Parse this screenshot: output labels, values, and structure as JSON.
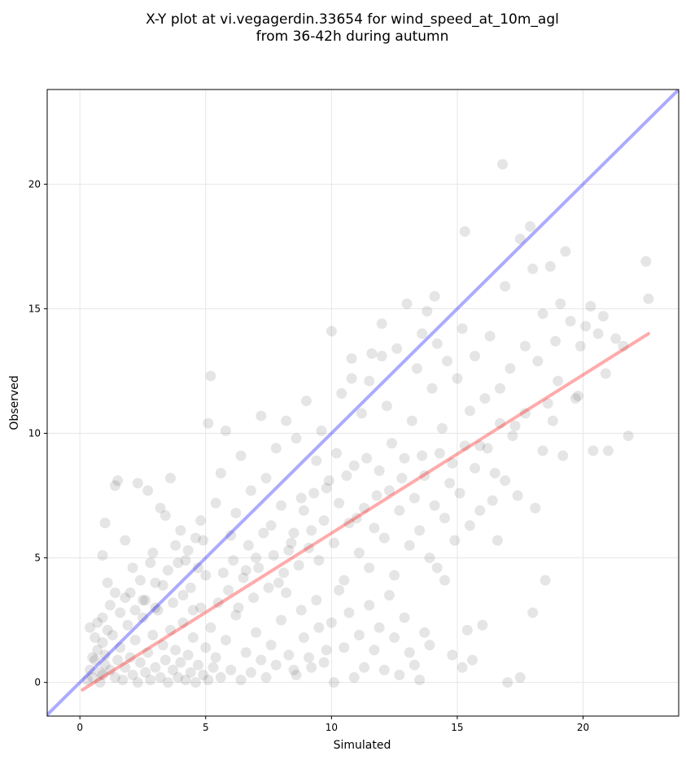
{
  "chart_data": {
    "type": "scatter",
    "title": "X-Y plot at vi.vegagerdin.33654 for wind_speed_at_10m_agl",
    "subtitle": "from 36-42h during autumn",
    "xlabel": "Simulated",
    "ylabel": "Observed",
    "xlim": [
      -1.3,
      23.8
    ],
    "ylim": [
      -1.35,
      23.8
    ],
    "xticks": [
      0,
      5,
      10,
      15,
      20
    ],
    "yticks": [
      0,
      5,
      10,
      15,
      20
    ],
    "grid": true,
    "point_color": "#000000",
    "point_opacity": 0.1,
    "identity_line": {
      "color": "#0000ff",
      "opacity": 0.33,
      "from": [
        -1.3,
        -1.3
      ],
      "to": [
        23.8,
        23.8
      ]
    },
    "fit_line": {
      "color": "#ff0000",
      "opacity": 0.33,
      "from": [
        0.1,
        -0.3
      ],
      "to": [
        22.6,
        14.0
      ]
    },
    "points": [
      [
        0.3,
        0.1
      ],
      [
        0.4,
        0.5
      ],
      [
        0.5,
        0.2
      ],
      [
        0.6,
        0.9
      ],
      [
        0.7,
        1.3
      ],
      [
        0.8,
        0.4
      ],
      [
        0.9,
        1.6
      ],
      [
        1.0,
        0.7
      ],
      [
        1.1,
        2.1
      ],
      [
        0.5,
        1.0
      ],
      [
        0.6,
        1.8
      ],
      [
        0.7,
        2.4
      ],
      [
        0.8,
        0.0
      ],
      [
        0.9,
        0.3
      ],
      [
        1.0,
        1.1
      ],
      [
        1.2,
        0.5
      ],
      [
        1.3,
        1.9
      ],
      [
        1.4,
        0.2
      ],
      [
        0.4,
        2.2
      ],
      [
        0.9,
        2.6
      ],
      [
        1.5,
        0.9
      ],
      [
        1.6,
        1.4
      ],
      [
        1.7,
        0.1
      ],
      [
        1.8,
        0.6
      ],
      [
        1.9,
        2.3
      ],
      [
        2.0,
        1.0
      ],
      [
        2.1,
        0.3
      ],
      [
        2.2,
        1.7
      ],
      [
        2.3,
        0.0
      ],
      [
        2.4,
        0.8
      ],
      [
        2.5,
        2.6
      ],
      [
        2.6,
        0.4
      ],
      [
        2.7,
        1.2
      ],
      [
        2.8,
        0.1
      ],
      [
        2.9,
        1.9
      ],
      [
        3.0,
        0.6
      ],
      [
        3.1,
        2.9
      ],
      [
        3.2,
        0.2
      ],
      [
        3.3,
        1.5
      ],
      [
        3.4,
        0.9
      ],
      [
        3.5,
        0.0
      ],
      [
        3.6,
        2.1
      ],
      [
        3.7,
        0.5
      ],
      [
        3.8,
        1.3
      ],
      [
        3.9,
        0.2
      ],
      [
        4.0,
        0.8
      ],
      [
        4.1,
        2.4
      ],
      [
        4.2,
        0.1
      ],
      [
        4.3,
        1.1
      ],
      [
        4.4,
        0.4
      ],
      [
        4.5,
        1.8
      ],
      [
        4.6,
        0.0
      ],
      [
        4.7,
        0.7
      ],
      [
        4.8,
        3.0
      ],
      [
        4.9,
        0.3
      ],
      [
        5.0,
        1.4
      ],
      [
        5.1,
        0.1
      ],
      [
        5.2,
        2.2
      ],
      [
        5.3,
        0.6
      ],
      [
        5.4,
        1.0
      ],
      [
        5.6,
        0.2
      ],
      [
        5.8,
        1.7
      ],
      [
        6.0,
        0.5
      ],
      [
        6.2,
        2.7
      ],
      [
        6.4,
        0.1
      ],
      [
        6.6,
        1.2
      ],
      [
        6.8,
        0.4
      ],
      [
        7.0,
        2.0
      ],
      [
        7.2,
        0.9
      ],
      [
        7.4,
        0.2
      ],
      [
        7.6,
        1.5
      ],
      [
        7.8,
        0.7
      ],
      [
        8.0,
        2.5
      ],
      [
        8.3,
        1.1
      ],
      [
        8.6,
        0.3
      ],
      [
        8.9,
        1.8
      ],
      [
        9.2,
        0.6
      ],
      [
        9.5,
        2.2
      ],
      [
        9.8,
        1.3
      ],
      [
        10.1,
        0.0
      ],
      [
        1.2,
        3.1
      ],
      [
        1.4,
        3.6
      ],
      [
        1.1,
        4.0
      ],
      [
        0.9,
        5.1
      ],
      [
        1.0,
        6.4
      ],
      [
        1.4,
        7.9
      ],
      [
        1.5,
        8.1
      ],
      [
        1.8,
        5.7
      ],
      [
        2.1,
        4.6
      ],
      [
        2.3,
        8.0
      ],
      [
        2.5,
        3.3
      ],
      [
        2.7,
        7.7
      ],
      [
        2.9,
        5.2
      ],
      [
        3.0,
        4.0
      ],
      [
        3.2,
        7.0
      ],
      [
        3.4,
        6.7
      ],
      [
        3.6,
        8.2
      ],
      [
        3.8,
        5.5
      ],
      [
        4.0,
        6.1
      ],
      [
        4.2,
        4.9
      ],
      [
        4.4,
        3.8
      ],
      [
        4.6,
        5.8
      ],
      [
        4.8,
        6.5
      ],
      [
        5.0,
        4.3
      ],
      [
        5.2,
        12.3
      ],
      [
        5.1,
        10.4
      ],
      [
        5.4,
        7.2
      ],
      [
        5.6,
        8.4
      ],
      [
        5.8,
        10.1
      ],
      [
        6.0,
        5.9
      ],
      [
        6.2,
        6.8
      ],
      [
        6.4,
        9.1
      ],
      [
        6.6,
        4.5
      ],
      [
        6.8,
        7.7
      ],
      [
        7.0,
        5.0
      ],
      [
        7.2,
        10.7
      ],
      [
        7.4,
        8.2
      ],
      [
        7.6,
        6.3
      ],
      [
        7.8,
        9.4
      ],
      [
        8.0,
        7.1
      ],
      [
        8.2,
        10.5
      ],
      [
        8.4,
        5.6
      ],
      [
        8.6,
        9.8
      ],
      [
        8.8,
        7.4
      ],
      [
        9.0,
        11.3
      ],
      [
        9.2,
        6.1
      ],
      [
        9.4,
        8.9
      ],
      [
        9.6,
        10.1
      ],
      [
        9.8,
        7.8
      ],
      [
        10.0,
        14.1
      ],
      [
        10.2,
        9.2
      ],
      [
        10.4,
        11.6
      ],
      [
        10.6,
        8.3
      ],
      [
        10.8,
        12.2
      ],
      [
        11.0,
        6.6
      ],
      [
        11.2,
        10.8
      ],
      [
        11.4,
        9.0
      ],
      [
        11.6,
        13.2
      ],
      [
        11.8,
        7.5
      ],
      [
        12.0,
        14.4
      ],
      [
        12.2,
        11.1
      ],
      [
        12.4,
        9.6
      ],
      [
        12.6,
        13.4
      ],
      [
        12.8,
        8.2
      ],
      [
        13.0,
        15.2
      ],
      [
        13.2,
        10.5
      ],
      [
        13.4,
        12.6
      ],
      [
        13.6,
        9.1
      ],
      [
        13.8,
        14.9
      ],
      [
        14.0,
        11.8
      ],
      [
        14.2,
        13.6
      ],
      [
        14.4,
        10.2
      ],
      [
        14.6,
        12.9
      ],
      [
        14.8,
        8.8
      ],
      [
        15.0,
        12.2
      ],
      [
        15.2,
        14.2
      ],
      [
        15.3,
        18.1
      ],
      [
        15.5,
        10.9
      ],
      [
        15.7,
        13.1
      ],
      [
        15.9,
        9.5
      ],
      [
        16.1,
        11.4
      ],
      [
        16.3,
        13.9
      ],
      [
        16.5,
        8.4
      ],
      [
        16.7,
        11.8
      ],
      [
        16.8,
        20.8
      ],
      [
        16.9,
        15.9
      ],
      [
        17.1,
        12.6
      ],
      [
        17.3,
        10.3
      ],
      [
        17.5,
        17.8
      ],
      [
        17.7,
        13.5
      ],
      [
        17.9,
        18.3
      ],
      [
        18.0,
        16.6
      ],
      [
        18.2,
        12.9
      ],
      [
        18.4,
        14.8
      ],
      [
        18.6,
        11.2
      ],
      [
        18.7,
        16.7
      ],
      [
        18.9,
        13.7
      ],
      [
        19.1,
        15.2
      ],
      [
        19.3,
        17.3
      ],
      [
        19.5,
        14.5
      ],
      [
        19.7,
        11.4
      ],
      [
        19.9,
        13.5
      ],
      [
        20.1,
        14.3
      ],
      [
        20.3,
        15.1
      ],
      [
        20.6,
        14.0
      ],
      [
        20.8,
        14.7
      ],
      [
        21.0,
        9.3
      ],
      [
        21.3,
        13.8
      ],
      [
        21.8,
        9.9
      ],
      [
        22.5,
        16.9
      ],
      [
        22.6,
        15.4
      ],
      [
        19.0,
        12.1
      ],
      [
        18.5,
        4.1
      ],
      [
        18.0,
        2.8
      ],
      [
        17.5,
        0.2
      ],
      [
        17.0,
        0.0
      ],
      [
        16.6,
        5.7
      ],
      [
        16.0,
        2.3
      ],
      [
        15.6,
        0.9
      ],
      [
        15.4,
        2.1
      ],
      [
        15.2,
        0.6
      ],
      [
        14.8,
        1.1
      ],
      [
        14.5,
        4.1
      ],
      [
        14.2,
        4.6
      ],
      [
        13.9,
        1.5
      ],
      [
        13.7,
        2.0
      ],
      [
        13.5,
        0.1
      ],
      [
        13.3,
        0.7
      ],
      [
        13.1,
        1.2
      ],
      [
        12.9,
        2.6
      ],
      [
        12.7,
        0.3
      ],
      [
        12.5,
        1.8
      ],
      [
        12.3,
        3.5
      ],
      [
        12.1,
        0.5
      ],
      [
        11.9,
        2.2
      ],
      [
        11.7,
        1.3
      ],
      [
        11.5,
        3.1
      ],
      [
        11.3,
        0.6
      ],
      [
        11.1,
        1.9
      ],
      [
        10.9,
        0.2
      ],
      [
        10.7,
        2.8
      ],
      [
        10.5,
        1.4
      ],
      [
        10.3,
        3.7
      ],
      [
        10.0,
        2.4
      ],
      [
        9.7,
        0.8
      ],
      [
        9.4,
        3.3
      ],
      [
        9.1,
        1.0
      ],
      [
        8.8,
        2.9
      ],
      [
        8.5,
        0.5
      ],
      [
        8.2,
        3.6
      ],
      [
        8.1,
        4.4
      ],
      [
        8.3,
        5.3
      ],
      [
        8.5,
        6.0
      ],
      [
        8.7,
        4.7
      ],
      [
        8.9,
        6.9
      ],
      [
        9.1,
        5.4
      ],
      [
        9.3,
        7.6
      ],
      [
        9.5,
        4.9
      ],
      [
        9.7,
        6.5
      ],
      [
        9.9,
        8.1
      ],
      [
        10.1,
        5.6
      ],
      [
        10.3,
        7.2
      ],
      [
        10.5,
        4.1
      ],
      [
        10.7,
        6.4
      ],
      [
        10.9,
        8.7
      ],
      [
        11.1,
        5.2
      ],
      [
        11.3,
        7.0
      ],
      [
        11.5,
        4.6
      ],
      [
        11.7,
        6.2
      ],
      [
        11.9,
        8.5
      ],
      [
        12.1,
        5.8
      ],
      [
        12.3,
        7.7
      ],
      [
        12.5,
        4.3
      ],
      [
        12.7,
        6.9
      ],
      [
        12.9,
        9.0
      ],
      [
        13.1,
        5.5
      ],
      [
        13.3,
        7.4
      ],
      [
        13.5,
        6.1
      ],
      [
        13.7,
        8.3
      ],
      [
        13.9,
        5.0
      ],
      [
        14.1,
        7.1
      ],
      [
        14.3,
        9.2
      ],
      [
        14.5,
        6.6
      ],
      [
        14.7,
        8.0
      ],
      [
        14.9,
        5.7
      ],
      [
        15.1,
        7.6
      ],
      [
        15.3,
        9.5
      ],
      [
        15.5,
        6.3
      ],
      [
        15.7,
        8.6
      ],
      [
        15.9,
        6.9
      ],
      [
        16.2,
        9.4
      ],
      [
        16.4,
        7.3
      ],
      [
        16.7,
        10.4
      ],
      [
        16.9,
        8.1
      ],
      [
        17.2,
        9.9
      ],
      [
        17.4,
        7.5
      ],
      [
        17.7,
        10.8
      ],
      [
        18.1,
        7.0
      ],
      [
        18.4,
        9.3
      ],
      [
        18.8,
        10.5
      ],
      [
        19.2,
        9.1
      ],
      [
        19.8,
        11.5
      ],
      [
        20.4,
        9.3
      ],
      [
        20.9,
        12.4
      ],
      [
        21.6,
        13.5
      ],
      [
        5.5,
        3.2
      ],
      [
        5.7,
        4.4
      ],
      [
        5.9,
        3.7
      ],
      [
        6.1,
        4.9
      ],
      [
        6.3,
        3.0
      ],
      [
        6.5,
        4.2
      ],
      [
        6.7,
        5.5
      ],
      [
        6.9,
        3.4
      ],
      [
        7.1,
        4.6
      ],
      [
        7.3,
        6.0
      ],
      [
        7.5,
        3.8
      ],
      [
        7.7,
        5.1
      ],
      [
        7.9,
        4.0
      ],
      [
        3.3,
        3.9
      ],
      [
        3.5,
        4.5
      ],
      [
        3.7,
        3.2
      ],
      [
        3.9,
        4.8
      ],
      [
        4.1,
        3.5
      ],
      [
        4.3,
        5.3
      ],
      [
        4.5,
        2.9
      ],
      [
        4.7,
        4.6
      ],
      [
        4.9,
        5.7
      ],
      [
        2.0,
        3.6
      ],
      [
        2.2,
        2.9
      ],
      [
        2.4,
        4.1
      ],
      [
        2.6,
        3.3
      ],
      [
        2.8,
        4.8
      ],
      [
        3.0,
        3.0
      ],
      [
        1.6,
        2.8
      ],
      [
        1.8,
        3.4
      ],
      [
        12.0,
        13.1
      ],
      [
        11.5,
        12.1
      ],
      [
        13.6,
        14.0
      ],
      [
        14.1,
        15.5
      ],
      [
        10.8,
        13.0
      ]
    ]
  }
}
